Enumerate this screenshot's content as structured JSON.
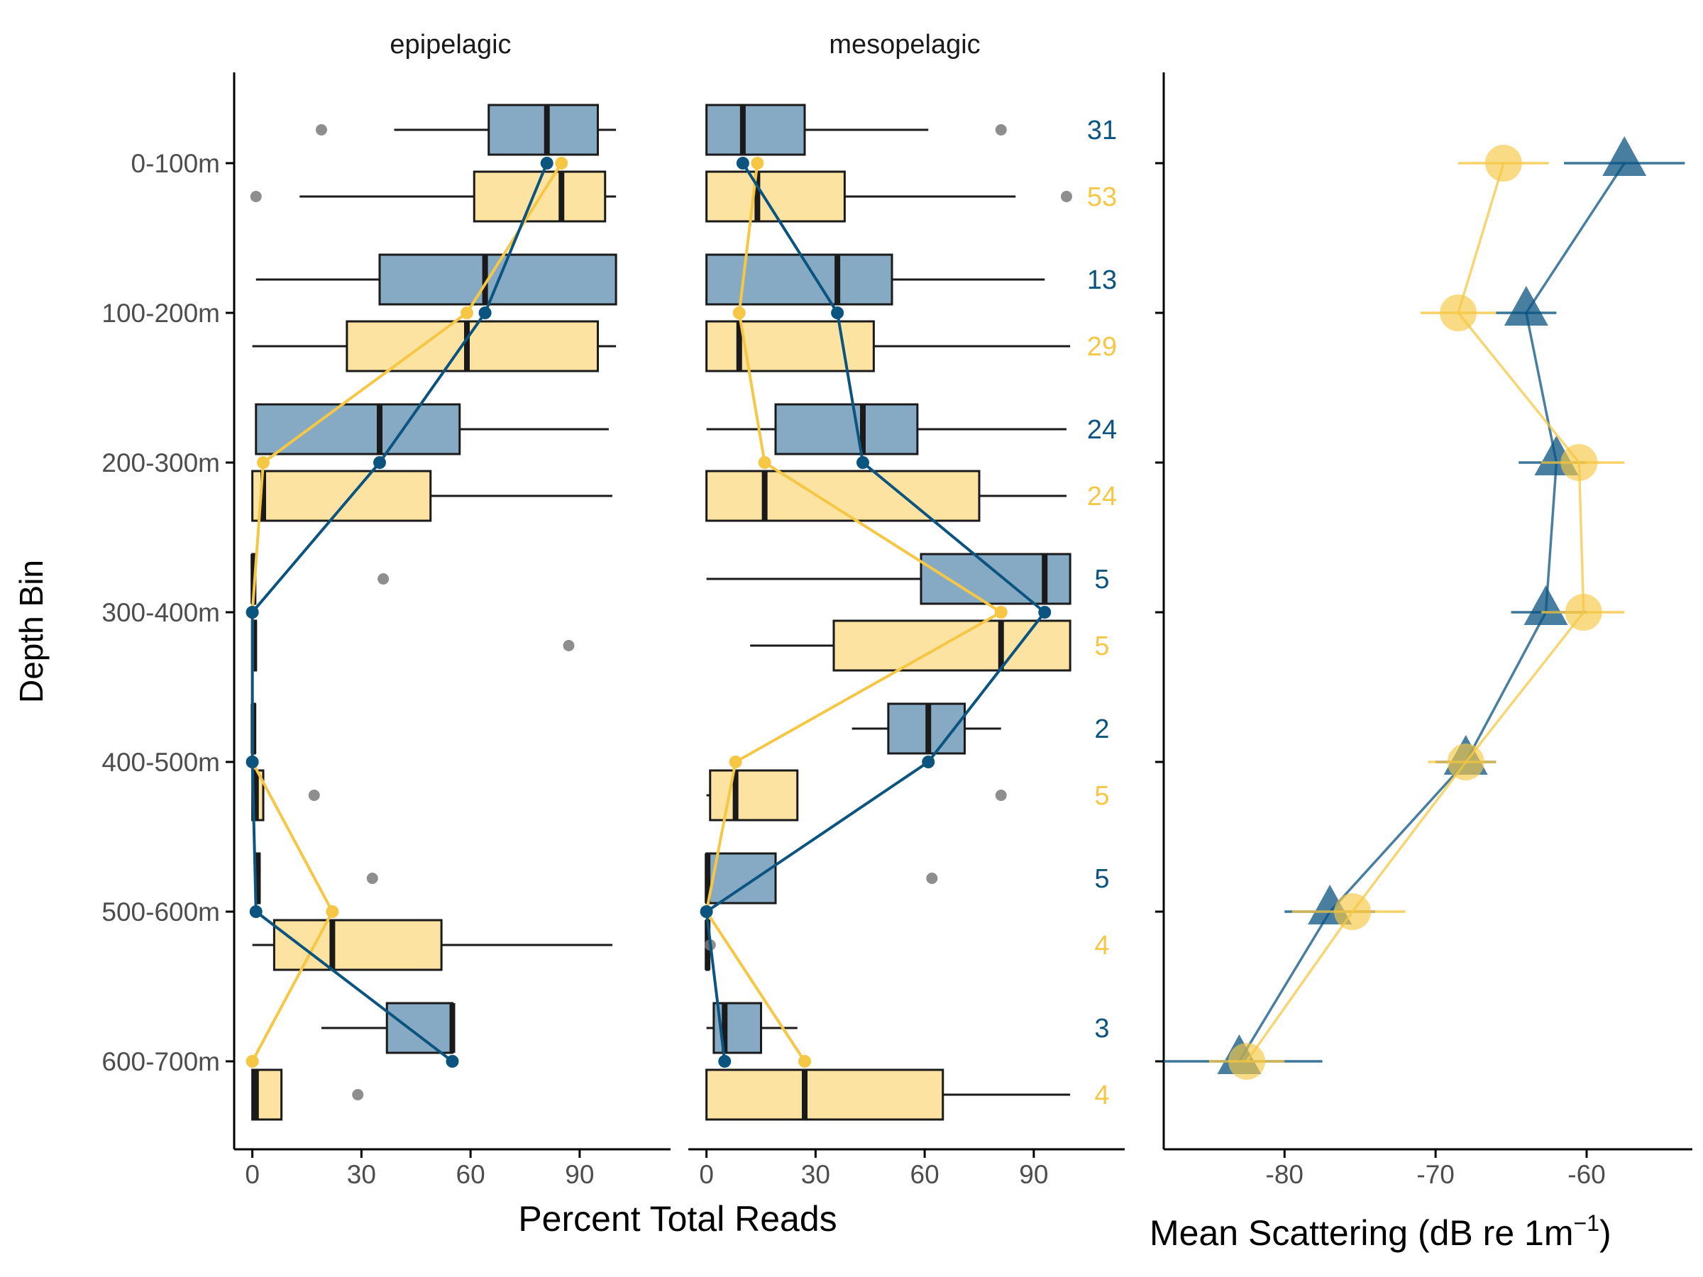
{
  "colors": {
    "epi_box": "#FCE3A2",
    "meso_box": "#87AAC4",
    "epi_line": "#F6C744",
    "meso_line": "#0B5480",
    "outlier": "#7A7A7A",
    "axis": "#000000",
    "tick_text": "#4D4D4D"
  },
  "chart_data": [
    {
      "type": "boxplot",
      "panel": "epipelagic",
      "xlabel": "Percent Total Reads",
      "ylabel": "Depth Bin",
      "categories": [
        "0-100m",
        "100-200m",
        "200-300m",
        "300-400m",
        "400-500m",
        "500-600m",
        "600-700m"
      ],
      "xlim": [
        -5,
        115
      ],
      "xticks": [
        0,
        30,
        60,
        90
      ],
      "boxes": {
        "mesopelagic": [
          {
            "whisker_lo": 39,
            "q1": 65,
            "median": 81,
            "q3": 95,
            "whisker_hi": 100,
            "outliers": [
              19
            ]
          },
          {
            "whisker_lo": 1,
            "q1": 35,
            "median": 64,
            "q3": 100,
            "whisker_hi": 100,
            "outliers": []
          },
          {
            "whisker_lo": 1,
            "q1": 1,
            "median": 35,
            "q3": 57,
            "whisker_hi": 98,
            "outliers": []
          },
          {
            "whisker_lo": 0,
            "q1": 0,
            "median": 0.3,
            "q3": 0.8,
            "whisker_hi": 1,
            "outliers": [
              36
            ]
          },
          {
            "whisker_lo": 0,
            "q1": 0,
            "median": 0.3,
            "q3": 0.7,
            "whisker_hi": 1,
            "outliers": []
          },
          {
            "whisker_lo": 1,
            "q1": 1,
            "median": 1.5,
            "q3": 2,
            "whisker_hi": 2,
            "outliers": [
              33
            ]
          },
          {
            "whisker_lo": 19,
            "q1": 37,
            "median": 55,
            "q3": 55,
            "whisker_hi": 55,
            "outliers": []
          }
        ],
        "epipelagic": [
          {
            "whisker_lo": 13,
            "q1": 61,
            "median": 85,
            "q3": 97,
            "whisker_hi": 100,
            "outliers": [
              1
            ]
          },
          {
            "whisker_lo": 0,
            "q1": 26,
            "median": 59,
            "q3": 95,
            "whisker_hi": 100,
            "outliers": []
          },
          {
            "whisker_lo": 0,
            "q1": 0,
            "median": 3,
            "q3": 49,
            "whisker_hi": 99,
            "outliers": []
          },
          {
            "whisker_lo": 0,
            "q1": 0,
            "median": 0.5,
            "q3": 1,
            "whisker_hi": 1,
            "outliers": [
              87
            ]
          },
          {
            "whisker_lo": 0,
            "q1": 0,
            "median": 1,
            "q3": 3,
            "whisker_hi": 3,
            "outliers": [
              17
            ]
          },
          {
            "whisker_lo": 0,
            "q1": 6,
            "median": 22,
            "q3": 52,
            "whisker_hi": 99,
            "outliers": []
          },
          {
            "whisker_lo": 0,
            "q1": 0,
            "median": 1,
            "q3": 8,
            "whisker_hi": 8,
            "outliers": [
              29
            ]
          }
        ]
      },
      "mean_lines": {
        "mesopelagic": [
          81,
          64,
          35,
          0,
          0,
          1,
          55
        ],
        "epipelagic": [
          85,
          59,
          3,
          0,
          0,
          22,
          0
        ]
      }
    },
    {
      "type": "boxplot",
      "panel": "mesopelagic",
      "xlabel": "Percent Total Reads",
      "categories": [
        "0-100m",
        "100-200m",
        "200-300m",
        "300-400m",
        "400-500m",
        "500-600m",
        "600-700m"
      ],
      "xlim": [
        -5,
        115
      ],
      "xticks": [
        0,
        30,
        60,
        90
      ],
      "boxes": {
        "mesopelagic": [
          {
            "whisker_lo": 0,
            "q1": 0,
            "median": 10,
            "q3": 27,
            "whisker_hi": 61,
            "outliers": [
              81
            ]
          },
          {
            "whisker_lo": 0,
            "q1": 0,
            "median": 36,
            "q3": 51,
            "whisker_hi": 93,
            "outliers": []
          },
          {
            "whisker_lo": 0,
            "q1": 19,
            "median": 43,
            "q3": 58,
            "whisker_hi": 99,
            "outliers": []
          },
          {
            "whisker_lo": 0,
            "q1": 59,
            "median": 93,
            "q3": 100,
            "whisker_hi": 100,
            "outliers": []
          },
          {
            "whisker_lo": 40,
            "q1": 50,
            "median": 61,
            "q3": 71,
            "whisker_hi": 81,
            "outliers": []
          },
          {
            "whisker_lo": 0,
            "q1": 0,
            "median": 0.3,
            "q3": 19,
            "whisker_hi": 19,
            "outliers": [
              62
            ]
          },
          {
            "whisker_lo": 0,
            "q1": 2,
            "median": 5,
            "q3": 15,
            "whisker_hi": 25,
            "outliers": []
          }
        ],
        "epipelagic": [
          {
            "whisker_lo": 0,
            "q1": 0,
            "median": 14,
            "q3": 38,
            "whisker_hi": 85,
            "outliers": [
              99
            ]
          },
          {
            "whisker_lo": 0,
            "q1": 0,
            "median": 9,
            "q3": 46,
            "whisker_hi": 100,
            "outliers": []
          },
          {
            "whisker_lo": 0,
            "q1": 0,
            "median": 16,
            "q3": 75,
            "whisker_hi": 99,
            "outliers": []
          },
          {
            "whisker_lo": 12,
            "q1": 35,
            "median": 81,
            "q3": 100,
            "whisker_hi": 100,
            "outliers": []
          },
          {
            "whisker_lo": 0,
            "q1": 1,
            "median": 8,
            "q3": 25,
            "whisker_hi": 25,
            "outliers": [
              81
            ]
          },
          {
            "whisker_lo": 0,
            "q1": 0,
            "median": 0.3,
            "q3": 0.6,
            "whisker_hi": 1,
            "outliers": [
              1
            ]
          },
          {
            "whisker_lo": 0,
            "q1": 0,
            "median": 27,
            "q3": 65,
            "whisker_hi": 100,
            "outliers": []
          }
        ]
      },
      "mean_lines": {
        "mesopelagic": [
          10,
          36,
          43,
          93,
          61,
          0,
          5
        ],
        "epipelagic": [
          14,
          9,
          16,
          81,
          8,
          0,
          27
        ]
      }
    },
    {
      "type": "scatter",
      "panel": "scattering",
      "xlabel": "Mean Scattering  (dB re 1m",
      "xlabel_sup": "−1",
      "xlabel_close": ")",
      "categories": [
        "0-100m",
        "100-200m",
        "200-300m",
        "300-400m",
        "400-500m",
        "500-600m",
        "600-700m"
      ],
      "xlim": [
        -88,
        -53
      ],
      "xticks": [
        -80,
        -70,
        -60
      ],
      "series": [
        {
          "group": "mesopelagic",
          "marker": "triangle",
          "values": [
            -57.5,
            -64,
            -62,
            -62.7,
            -68,
            -77,
            -83
          ],
          "err_lo": [
            -61.5,
            -66,
            -64.5,
            -65,
            -70,
            -80,
            -88
          ],
          "err_hi": [
            -53.5,
            -62,
            -60,
            -60,
            -66,
            -74,
            -77.5
          ]
        },
        {
          "group": "epipelagic",
          "marker": "circle",
          "values": [
            -65.5,
            -68.5,
            -60.5,
            -60.2,
            -68,
            -75.5,
            -82.5
          ],
          "err_lo": [
            -68.5,
            -71,
            -63,
            -63,
            -70.5,
            -79.5,
            -85
          ],
          "err_hi": [
            -62.5,
            -66,
            -57.5,
            -57.5,
            -66,
            -72,
            -80
          ]
        }
      ]
    }
  ],
  "counts": {
    "mesopelagic": [
      "31",
      "13",
      "24",
      "5",
      "2",
      "5",
      "3"
    ],
    "epipelagic": [
      "53",
      "29",
      "24",
      "5",
      "5",
      "4",
      "4"
    ]
  },
  "strips": {
    "left": "epipelagic",
    "right": "mesopelagic"
  },
  "labels": {
    "ylabel": "Depth Bin",
    "xlabel_reads": "Percent Total Reads",
    "xlabel_scatter": "Mean Scattering  (dB re 1m",
    "xlabel_scatter_sup": "−1",
    "xlabel_scatter_close": ")"
  }
}
